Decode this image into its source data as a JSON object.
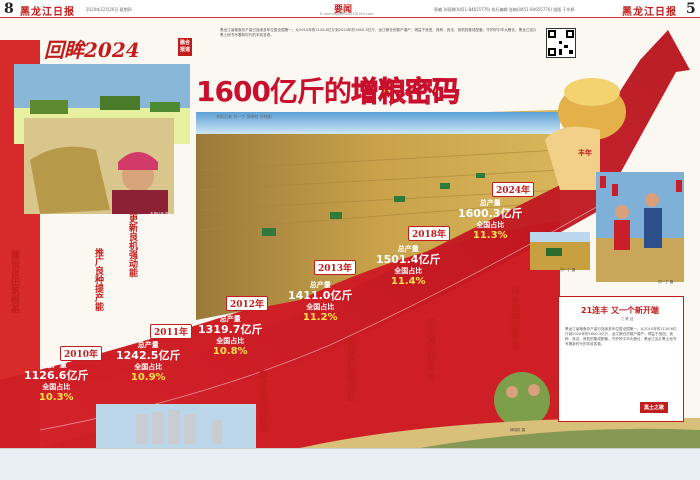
{
  "header": {
    "page_left": "8",
    "page_right": "5",
    "paper_name_left": "黑龙江日报",
    "paper_name_right": "黑龙江日报",
    "section": "要闻",
    "section_url": "E-mail:yaowen0451@163.com",
    "date_left": "2024年12月26日 星期四",
    "editor_info": "责编 孙丽娜(0451-84655776)  执行编辑 张梅(0451-84655776)  组版 于东辉"
  },
  "review_logo": "回眸2024",
  "feature_tag": "融合报道",
  "main_title": {
    "part1": "1600亿斤的",
    "part2": "增粮密码"
  },
  "byline": "本报记者 刘一丁 邱晓虹 孙铭阳",
  "intro_text": "黑龙江省粮食总产量已连续多年位居全国第一。从2010年的1126.6亿斤到2024年的1600.3亿斤，龙江粮仓的稳产增产，得益于良田、良种、良法、良机的集成配套。守护好中华大粮仓，黑龙江这片黑土地书写着新时代的丰收答卷。",
  "milestones": [
    {
      "year": "2010年",
      "label": "总产量",
      "value": "1126.6亿斤",
      "share_label": "全国占比",
      "share": "10.3%"
    },
    {
      "year": "2011年",
      "label": "总产量",
      "value": "1242.5亿斤",
      "share_label": "全国占比",
      "share": "10.9%"
    },
    {
      "year": "2012年",
      "label": "总产量",
      "value": "1319.7亿斤",
      "share_label": "全国占比",
      "share": "10.8%"
    },
    {
      "year": "2013年",
      "label": "总产量",
      "value": "1411.0亿斤",
      "share_label": "全国占比",
      "share": "11.2%"
    },
    {
      "year": "2018年",
      "label": "总产量",
      "value": "1501.4亿斤",
      "share_label": "全国占比",
      "share": "11.4%"
    },
    {
      "year": "2024年",
      "label": "总产量",
      "value": "1600.3亿斤",
      "share_label": "全国占比",
      "share": "11.3%"
    }
  ],
  "vertical_heads": [
    {
      "text": "建设良田筑根基"
    },
    {
      "text": "推广良种提产能"
    },
    {
      "text": "更新良机强动能"
    },
    {
      "text": "集成良法提标准"
    },
    {
      "text": "发展良制增效益"
    },
    {
      "text": "防灾减灾保丰收"
    },
    {
      "text": "兴水润田固粮仓"
    }
  ],
  "side_article": {
    "title_prefix": "21连丰",
    "title_suffix": "又一个新开端",
    "author": "□ 陈 征",
    "badge": "黑土之歌"
  },
  "photo_captions": [
    "本报记者 摄",
    "刘一丁 摄",
    "刘一丁 摄",
    "邱晓虹 摄"
  ],
  "basket_label": "丰年"
}
